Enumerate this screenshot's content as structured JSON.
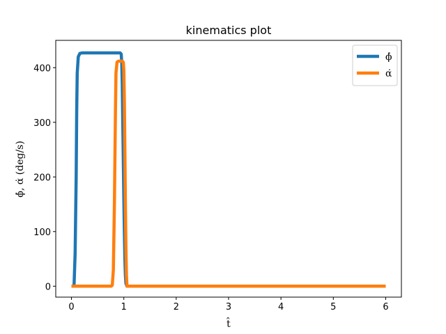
{
  "chart_data": {
    "type": "line",
    "title": "kinematics plot",
    "xlabel": "t̂",
    "ylabel": "ϕ̇, α̇ (deg/s)",
    "xlim": [
      -0.3,
      6.3
    ],
    "ylim": [
      -20,
      450
    ],
    "xticks": [
      0,
      1,
      2,
      3,
      4,
      5,
      6
    ],
    "yticks": [
      0,
      100,
      200,
      300,
      400
    ],
    "grid": false,
    "legend_position": "top-right",
    "series": [
      {
        "name": "ϕ̇",
        "color": "#1f77b4",
        "x": [
          0.0,
          0.03,
          0.05,
          0.07,
          0.09,
          0.1,
          0.11,
          0.13,
          0.16,
          0.2,
          0.5,
          0.8,
          0.93,
          0.95,
          0.96,
          0.97,
          0.98,
          0.99,
          1.0,
          1.01,
          1.02,
          1.03,
          1.04,
          1.06,
          1.1,
          2.0,
          3.0,
          4.0,
          5.0,
          6.0
        ],
        "y": [
          0,
          0,
          3,
          60,
          200,
          320,
          390,
          420,
          426,
          427,
          427,
          427,
          427,
          425,
          410,
          370,
          300,
          230,
          160,
          100,
          50,
          20,
          5,
          0,
          0,
          0,
          0,
          0,
          0,
          0
        ]
      },
      {
        "name": "α̇",
        "color": "#ff7f0e",
        "x": [
          0.0,
          0.5,
          0.76,
          0.78,
          0.8,
          0.82,
          0.84,
          0.85,
          0.87,
          0.9,
          0.97,
          0.99,
          1.0,
          1.01,
          1.02,
          1.03,
          1.04,
          1.05,
          1.06,
          1.1,
          2.0,
          3.0,
          4.0,
          5.0,
          6.0
        ],
        "y": [
          0,
          0,
          0,
          2,
          30,
          150,
          320,
          390,
          410,
          412,
          412,
          410,
          395,
          340,
          250,
          150,
          70,
          20,
          0,
          0,
          0,
          0,
          0,
          0,
          0
        ]
      }
    ]
  }
}
